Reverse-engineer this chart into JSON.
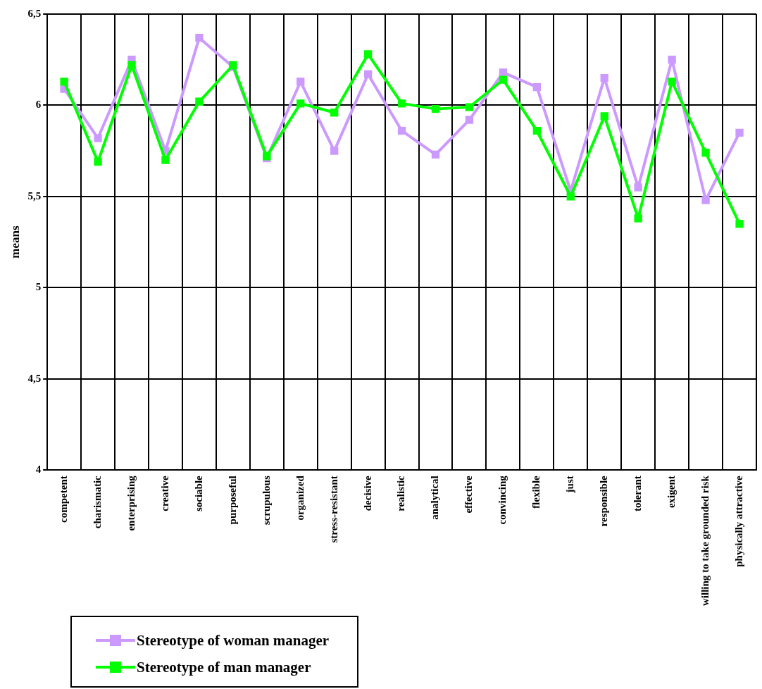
{
  "chart_data": {
    "type": "line",
    "ylabel": "means",
    "categories": [
      "competent",
      "charismatic",
      "enterprising",
      "creative",
      "sociable",
      "purposeful",
      "scrupulous",
      "organized",
      "stress-resistant",
      "decisive",
      "realistic",
      "analytical",
      "effective",
      "convincing",
      "flexible",
      "just",
      "responsible",
      "tolerant",
      "exigent",
      "willing to take grounded risk",
      "physically attractive"
    ],
    "series": [
      {
        "name": "Stereotype of woman manager",
        "color": "#cc99ff",
        "values": [
          6.09,
          5.82,
          6.25,
          5.75,
          6.37,
          6.21,
          5.71,
          6.13,
          5.75,
          6.17,
          5.86,
          5.73,
          5.92,
          6.18,
          6.1,
          5.53,
          6.15,
          5.55,
          6.25,
          5.48,
          5.85
        ]
      },
      {
        "name": "Stereotype of man manager",
        "color": "#00ff00",
        "values": [
          6.13,
          5.69,
          6.22,
          5.7,
          6.02,
          6.22,
          5.72,
          6.01,
          5.96,
          6.28,
          6.01,
          5.98,
          5.99,
          6.14,
          5.86,
          5.5,
          5.94,
          5.38,
          6.13,
          5.74,
          5.35
        ]
      }
    ],
    "ylim": [
      4,
      6.5
    ],
    "yticks": [
      4,
      {
        "value": 4.5,
        "label": "4,5"
      },
      5,
      {
        "value": 5.5,
        "label": "5,5"
      },
      6,
      {
        "value": 6.5,
        "label": "6,5"
      }
    ],
    "grid": true,
    "legend": "bottom left",
    "marker": "square",
    "line_style": "solid"
  }
}
